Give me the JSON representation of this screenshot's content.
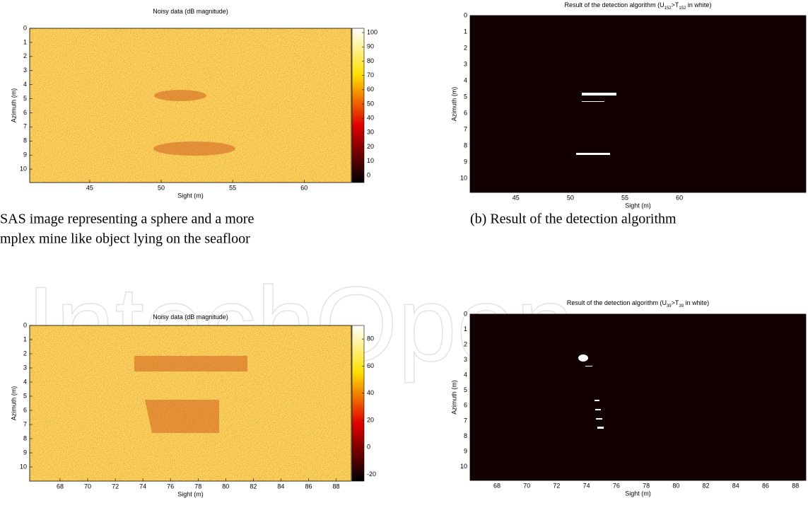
{
  "watermark": "IntechOpen",
  "captions": {
    "a": [
      "SAS image representing a sphere and a more",
      "mplex mine like object lying on the seafloor"
    ],
    "b": "(b) Result of the detection algorithm"
  },
  "panels": [
    {
      "title": [
        "Noisy data (dB magnitude)"
      ],
      "xlabel": "Sight (m)",
      "ylabel": "Azimuth (m)",
      "xlim": [
        40.8,
        63.3
      ],
      "ylim": [
        0,
        10.95
      ],
      "xticks": [
        45,
        50,
        55,
        60
      ],
      "yticks": [
        0,
        1,
        2,
        3,
        4,
        5,
        6,
        7,
        8,
        9,
        10
      ],
      "colorbar": {
        "lim": [
          -5,
          103
        ],
        "ticks": [
          0,
          10,
          20,
          30,
          40,
          50,
          60,
          70,
          80,
          90,
          100
        ]
      }
    },
    {
      "title": [
        "Result of the detection algorithm (U",
        "152",
        ">T",
        "152",
        " in white)"
      ],
      "xlabel": "Sight (m)",
      "ylabel": "Azimuth (m)",
      "xlim": [
        40.8,
        71.6
      ],
      "ylim": [
        0,
        10.87
      ],
      "xticks": [
        45,
        50,
        55,
        60
      ],
      "yticks": [
        0,
        1,
        2,
        3,
        4,
        5,
        6,
        7,
        8,
        9,
        10
      ]
    },
    {
      "title": [
        "Noisy data (dB magnitude)"
      ],
      "xlabel": "Sight (m)",
      "ylabel": "Azimuth (m)",
      "xlim": [
        65.8,
        89.1
      ],
      "ylim": [
        0,
        11
      ],
      "xticks": [
        68,
        70,
        72,
        74,
        76,
        78,
        80,
        82,
        84,
        86,
        88
      ],
      "yticks": [
        0,
        1,
        2,
        3,
        4,
        5,
        6,
        7,
        8,
        9,
        10
      ],
      "colorbar": {
        "lim": [
          -25,
          90
        ],
        "ticks": [
          -20,
          0,
          20,
          40,
          60,
          80
        ]
      }
    },
    {
      "title": [
        "Result of the detection algorithm (U",
        "39",
        ">T",
        "39",
        " in white)"
      ],
      "xlabel": "Sight (m)",
      "ylabel": "Azimuth (m)",
      "xlim": [
        66.2,
        88.7
      ],
      "ylim": [
        0,
        10.9
      ],
      "xticks": [
        68,
        70,
        72,
        74,
        76,
        78,
        80,
        82,
        84,
        86,
        88
      ],
      "yticks": [
        0,
        1,
        2,
        3,
        4,
        5,
        6,
        7,
        8,
        9,
        10
      ]
    }
  ]
}
